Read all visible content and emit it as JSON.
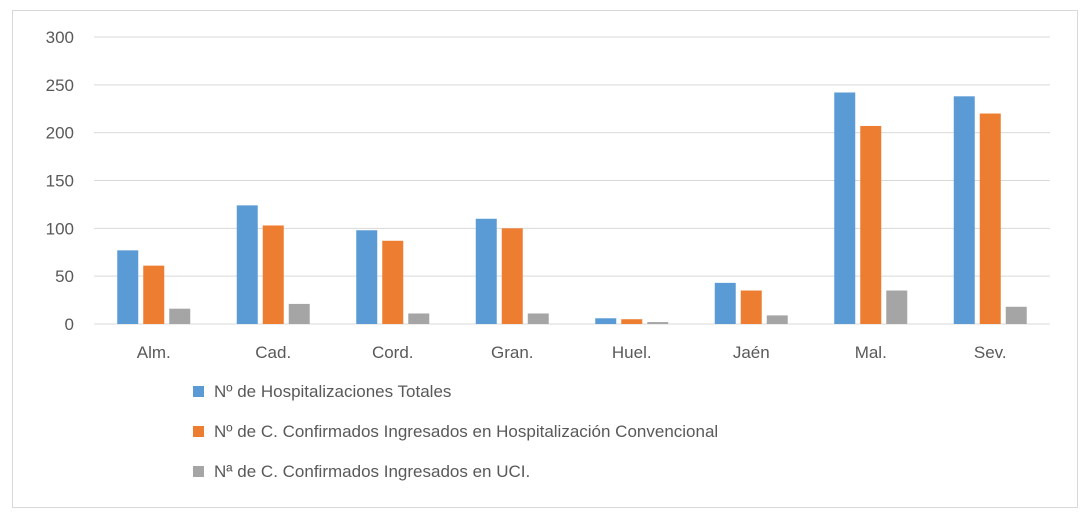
{
  "chart_data": {
    "type": "bar",
    "title": "",
    "xlabel": "",
    "ylabel": "",
    "ylim": [
      0,
      300
    ],
    "yticks": [
      0,
      50,
      100,
      150,
      200,
      250,
      300
    ],
    "grid": true,
    "legend_position": "bottom",
    "categories": [
      "Alm.",
      "Cad.",
      "Cord.",
      "Gran.",
      "Huel.",
      "Jaén",
      "Mal.",
      "Sev."
    ],
    "series": [
      {
        "name": "Nº de Hospitalizaciones Totales",
        "color": "#5b9bd5",
        "values": [
          77,
          124,
          98,
          110,
          6,
          43,
          242,
          238
        ]
      },
      {
        "name": "Nº de C. Confirmados Ingresados en Hospitalización Convencional",
        "color": "#ed7d31",
        "values": [
          61,
          103,
          87,
          100,
          5,
          35,
          207,
          220
        ]
      },
      {
        "name": "Nª de C. Confirmados Ingresados en UCI.",
        "color": "#a5a5a5",
        "values": [
          16,
          21,
          11,
          11,
          2,
          9,
          35,
          18
        ]
      }
    ]
  }
}
